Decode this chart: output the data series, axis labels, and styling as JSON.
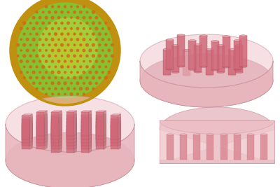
{
  "background_color": "#ffffff",
  "pink_rim": "#e8b8c0",
  "pink_base": "#f0c8cc",
  "pink_wall": "#e8b8be",
  "pink_floor": "#d8a8b0",
  "pink_dark": "#c89098",
  "pillar_color": "#d06878",
  "pillar_dark": "#b05060",
  "pillar_light": "#e8a0a8",
  "pillar_side": "#c07880",
  "scaffold_green_light": "#b8d840",
  "scaffold_green_mid": "#88c030",
  "scaffold_green_dark": "#60a020",
  "scaffold_yellow": "#d8c020",
  "scaffold_gold": "#c09010",
  "scaffold_pore": "#d06818"
}
